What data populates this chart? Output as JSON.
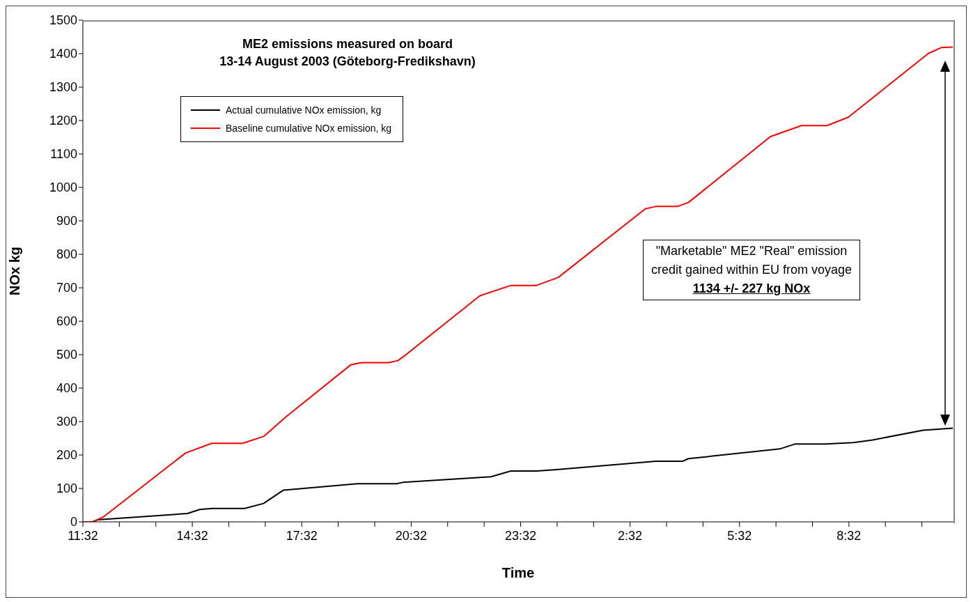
{
  "chart_data": {
    "type": "line",
    "title": "ME2 emissions measured on board",
    "subtitle": "13-14 August 2003 (Göteborg-Fredikshavn)",
    "xlabel": "Time",
    "ylabel": "NOx kg",
    "xlim": [
      "2003-08-13T11:32",
      "2003-08-14T11:24"
    ],
    "xticks": [
      {
        "value": "2003-08-13T11:32",
        "label": "11:32"
      },
      {
        "value": "2003-08-13T12:32",
        "label": null
      },
      {
        "value": "2003-08-13T13:32",
        "label": null
      },
      {
        "value": "2003-08-13T14:32",
        "label": "14:32"
      },
      {
        "value": "2003-08-13T15:32",
        "label": null
      },
      {
        "value": "2003-08-13T16:32",
        "label": null
      },
      {
        "value": "2003-08-13T17:32",
        "label": "17:32"
      },
      {
        "value": "2003-08-13T18:32",
        "label": null
      },
      {
        "value": "2003-08-13T19:32",
        "label": null
      },
      {
        "value": "2003-08-13T20:32",
        "label": "20:32"
      },
      {
        "value": "2003-08-13T21:32",
        "label": null
      },
      {
        "value": "2003-08-13T22:32",
        "label": null
      },
      {
        "value": "2003-08-13T23:32",
        "label": "23:32"
      },
      {
        "value": "2003-08-14T00:32",
        "label": null
      },
      {
        "value": "2003-08-14T01:32",
        "label": null
      },
      {
        "value": "2003-08-14T02:32",
        "label": "2:32"
      },
      {
        "value": "2003-08-14T03:32",
        "label": null
      },
      {
        "value": "2003-08-14T04:32",
        "label": null
      },
      {
        "value": "2003-08-14T05:32",
        "label": "5:32"
      },
      {
        "value": "2003-08-14T06:32",
        "label": null
      },
      {
        "value": "2003-08-14T07:32",
        "label": null
      },
      {
        "value": "2003-08-14T08:32",
        "label": "8:32"
      },
      {
        "value": "2003-08-14T09:32",
        "label": null
      },
      {
        "value": "2003-08-14T10:32",
        "label": null
      }
    ],
    "ylim": [
      0,
      1500
    ],
    "yticks": [
      0,
      100,
      200,
      300,
      400,
      500,
      600,
      700,
      800,
      900,
      1000,
      1100,
      1200,
      1300,
      1400,
      1500
    ],
    "legend": "top left",
    "marker": "none",
    "line_style": "solid",
    "series": [
      {
        "name": "Actual cumulative NOx emission, kg",
        "color": "#000000",
        "x": [
          "2003-08-13T11:32",
          "2003-08-13T11:48",
          "2003-08-13T11:56",
          "2003-08-13T14:24",
          "2003-08-13T14:44",
          "2003-08-13T15:04",
          "2003-08-13T15:58",
          "2003-08-13T16:29",
          "2003-08-13T17:02",
          "2003-08-13T19:04",
          "2003-08-13T20:08",
          "2003-08-13T20:18",
          "2003-08-13T22:43",
          "2003-08-13T23:16",
          "2003-08-13T23:59",
          "2003-08-14T00:31",
          "2003-08-14T03:14",
          "2003-08-14T03:58",
          "2003-08-14T04:08",
          "2003-08-14T06:38",
          "2003-08-14T07:04",
          "2003-08-14T07:53",
          "2003-08-14T08:39",
          "2003-08-14T09:11",
          "2003-08-14T10:34",
          "2003-08-14T11:23"
        ],
        "values": [
          0,
          0,
          6,
          25,
          37,
          40,
          40,
          55,
          95,
          114,
          114,
          118,
          135,
          152,
          152,
          156,
          181,
          181,
          189,
          218,
          233,
          233,
          237,
          245,
          274,
          280
        ]
      },
      {
        "name": "Baseline cumulative NOx emission, kg",
        "color": "#ff0000",
        "x": [
          "2003-08-13T11:32",
          "2003-08-13T11:48",
          "2003-08-13T12:06",
          "2003-08-13T14:21",
          "2003-08-13T15:04",
          "2003-08-13T15:55",
          "2003-08-13T16:30",
          "2003-08-13T17:06",
          "2003-08-13T18:53",
          "2003-08-13T19:10",
          "2003-08-13T19:55",
          "2003-08-13T20:10",
          "2003-08-13T20:20",
          "2003-08-13T22:25",
          "2003-08-13T23:16",
          "2003-08-13T23:58",
          "2003-08-14T00:34",
          "2003-08-14T02:57",
          "2003-08-14T03:14",
          "2003-08-14T03:50",
          "2003-08-14T04:08",
          "2003-08-14T06:23",
          "2003-08-14T07:14",
          "2003-08-14T07:56",
          "2003-08-14T08:31",
          "2003-08-14T10:43",
          "2003-08-14T11:04",
          "2003-08-14T11:23"
        ],
        "values": [
          0,
          0,
          15,
          206,
          235,
          235,
          256,
          314,
          470,
          476,
          476,
          482,
          495,
          676,
          707,
          707,
          731,
          936,
          943,
          943,
          955,
          1152,
          1185,
          1185,
          1210,
          1401,
          1418,
          1420
        ]
      }
    ],
    "annotations": [
      "\"Marketable\" ME2  \"Real\" emission credit gained within EU from voyage",
      "1134 +/- 227  kg NOx"
    ]
  }
}
